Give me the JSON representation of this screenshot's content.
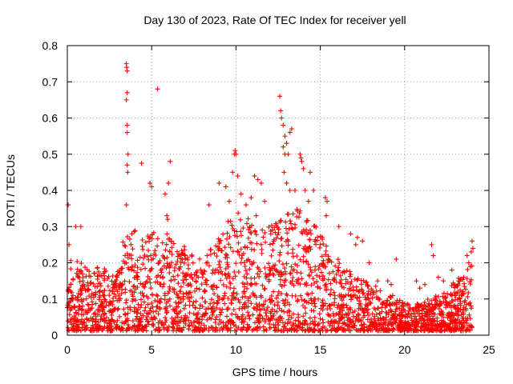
{
  "chart_data": {
    "type": "scatter",
    "title": "Day 130 of 2023, Rate Of TEC Index for receiver yell",
    "xlabel": "GPS time / hours",
    "ylabel": "ROTI / TECUs",
    "xlim": [
      0,
      25
    ],
    "ylim": [
      0,
      0.8
    ],
    "xticks": [
      "0",
      "5",
      "10",
      "15",
      "20",
      "25"
    ],
    "yticks": [
      "0",
      "0.1",
      "0.2",
      "0.3",
      "0.4",
      "0.5",
      "0.6",
      "0.7",
      "0.8"
    ],
    "grid": true,
    "marker": "+",
    "color": "#ff0000",
    "series": [
      {
        "name": "ROTI",
        "envelope_x": [
          0,
          0.5,
          1,
          1.5,
          2,
          2.5,
          3,
          3.5,
          4,
          4.5,
          5,
          5.5,
          6,
          6.5,
          7,
          7.5,
          8,
          8.5,
          9,
          9.5,
          10,
          10.5,
          11,
          11.5,
          12,
          12.5,
          13,
          13.5,
          14,
          14.5,
          15,
          15.5,
          16,
          16.5,
          17,
          17.5,
          18,
          18.5,
          19,
          19.5,
          20,
          20.5,
          21,
          21.5,
          22,
          22.5,
          23,
          23.5,
          24
        ],
        "envelope_y": [
          0.22,
          0.2,
          0.18,
          0.16,
          0.2,
          0.15,
          0.17,
          0.3,
          0.28,
          0.25,
          0.28,
          0.25,
          0.28,
          0.22,
          0.24,
          0.22,
          0.2,
          0.24,
          0.27,
          0.3,
          0.34,
          0.32,
          0.3,
          0.3,
          0.29,
          0.3,
          0.32,
          0.35,
          0.34,
          0.3,
          0.28,
          0.22,
          0.2,
          0.18,
          0.16,
          0.14,
          0.13,
          0.12,
          0.11,
          0.09,
          0.08,
          0.07,
          0.08,
          0.09,
          0.1,
          0.12,
          0.14,
          0.16,
          0.2
        ],
        "outliers": [
          [
            0.05,
            0.36
          ],
          [
            0.1,
            0.25
          ],
          [
            0.5,
            0.3
          ],
          [
            0.8,
            0.3
          ],
          [
            3.5,
            0.75
          ],
          [
            3.52,
            0.74
          ],
          [
            3.55,
            0.73
          ],
          [
            3.55,
            0.67
          ],
          [
            3.5,
            0.65
          ],
          [
            3.55,
            0.58
          ],
          [
            3.55,
            0.56
          ],
          [
            3.6,
            0.5
          ],
          [
            3.55,
            0.47
          ],
          [
            3.58,
            0.45
          ],
          [
            3.5,
            0.36
          ],
          [
            4.4,
            0.475
          ],
          [
            5.35,
            0.68
          ],
          [
            4.9,
            0.42
          ],
          [
            5.0,
            0.41
          ],
          [
            6.1,
            0.48
          ],
          [
            6.0,
            0.42
          ],
          [
            5.8,
            0.39
          ],
          [
            5.9,
            0.33
          ],
          [
            5.95,
            0.32
          ],
          [
            8.4,
            0.36
          ],
          [
            9.0,
            0.42
          ],
          [
            9.4,
            0.41
          ],
          [
            9.6,
            0.37
          ],
          [
            9.8,
            0.45
          ],
          [
            9.9,
            0.5
          ],
          [
            9.95,
            0.51
          ],
          [
            10.0,
            0.5
          ],
          [
            10.1,
            0.44
          ],
          [
            10.3,
            0.39
          ],
          [
            10.6,
            0.36
          ],
          [
            10.9,
            0.38
          ],
          [
            11.1,
            0.44
          ],
          [
            11.3,
            0.43
          ],
          [
            11.5,
            0.42
          ],
          [
            11.7,
            0.37
          ],
          [
            11.2,
            0.33
          ],
          [
            12.6,
            0.66
          ],
          [
            12.65,
            0.62
          ],
          [
            12.7,
            0.6
          ],
          [
            12.8,
            0.58
          ],
          [
            12.9,
            0.55
          ],
          [
            13.0,
            0.53
          ],
          [
            12.8,
            0.52
          ],
          [
            13.2,
            0.56
          ],
          [
            13.3,
            0.57
          ],
          [
            13.1,
            0.5
          ],
          [
            12.9,
            0.5
          ],
          [
            12.85,
            0.45
          ],
          [
            13.0,
            0.42
          ],
          [
            13.2,
            0.4
          ],
          [
            13.5,
            0.4
          ],
          [
            13.8,
            0.5
          ],
          [
            13.85,
            0.49
          ],
          [
            13.9,
            0.48
          ],
          [
            14.0,
            0.46
          ],
          [
            14.4,
            0.45
          ],
          [
            14.1,
            0.4
          ],
          [
            14.3,
            0.37
          ],
          [
            14.6,
            0.4
          ],
          [
            15.3,
            0.38
          ],
          [
            15.4,
            0.37
          ],
          [
            15.35,
            0.33
          ],
          [
            16.1,
            0.3
          ],
          [
            16.8,
            0.28
          ],
          [
            17.2,
            0.27
          ],
          [
            17.5,
            0.26
          ],
          [
            17.1,
            0.25
          ],
          [
            17.9,
            0.2
          ],
          [
            18.4,
            0.15
          ],
          [
            19.0,
            0.15
          ],
          [
            19.5,
            0.21
          ],
          [
            19.2,
            0.14
          ],
          [
            20.7,
            0.15
          ],
          [
            20.9,
            0.13
          ],
          [
            21.2,
            0.14
          ],
          [
            21.6,
            0.25
          ],
          [
            21.7,
            0.22
          ],
          [
            22.0,
            0.16
          ],
          [
            22.3,
            0.15
          ],
          [
            22.8,
            0.18
          ],
          [
            23.2,
            0.15
          ],
          [
            23.5,
            0.16
          ],
          [
            23.7,
            0.22
          ],
          [
            23.8,
            0.2
          ],
          [
            23.9,
            0.19
          ],
          [
            24.0,
            0.26
          ],
          [
            24.05,
            0.24
          ],
          [
            23.95,
            0.23
          ]
        ]
      }
    ]
  }
}
